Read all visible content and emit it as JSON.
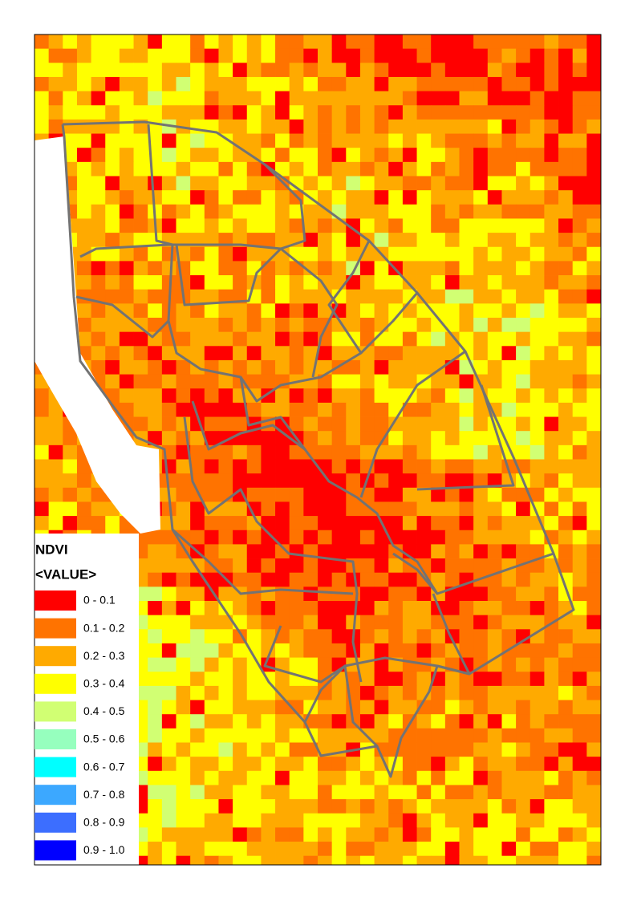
{
  "legend": {
    "title": "NDVI",
    "subtitle": "<VALUE>",
    "items": [
      {
        "label": "0 - 0.1",
        "color": "#ff0000"
      },
      {
        "label": "0.1 - 0.2",
        "color": "#ff7300"
      },
      {
        "label": "0.2 - 0.3",
        "color": "#ffaa00"
      },
      {
        "label": "0.3 - 0.4",
        "color": "#ffff00"
      },
      {
        "label": "0.4 - 0.5",
        "color": "#d1ff73"
      },
      {
        "label": "0.5 - 0.6",
        "color": "#96ffbe"
      },
      {
        "label": "0.6 - 0.7",
        "color": "#00ffff"
      },
      {
        "label": "0.7 - 0.8",
        "color": "#3ca8ff"
      },
      {
        "label": "0.8 - 0.9",
        "color": "#3c6eff"
      },
      {
        "label": "0.9 - 1.0",
        "color": "#0000ff"
      }
    ]
  }
}
